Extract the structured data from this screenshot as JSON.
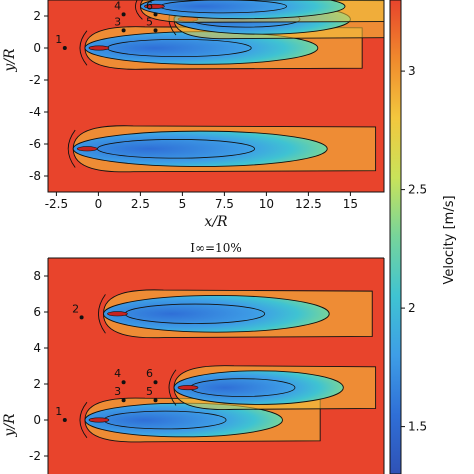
{
  "chart_data": [
    {
      "type": "heatmap",
      "title": "",
      "xlabel": "x/R",
      "ylabel": "y/R",
      "xlim": [
        -3,
        17
      ],
      "ylim": [
        -9,
        3
      ],
      "x_ticks": [
        "-2.5",
        "0",
        "2.5",
        "5",
        "7.5",
        "10",
        "12.5",
        "15"
      ],
      "y_ticks": [
        "2",
        "0",
        "-2",
        "-4",
        "-6",
        "-8"
      ],
      "turbines": [
        {
          "label": "1",
          "x": -2.0,
          "y": 0.0
        },
        {
          "label": "3",
          "x": 1.5,
          "y": 1.1
        },
        {
          "label": "4",
          "x": 1.5,
          "y": 2.1
        },
        {
          "label": "5",
          "x": 3.4,
          "y": 1.1
        },
        {
          "label": "6",
          "x": 3.4,
          "y": 2.1
        }
      ],
      "wakes": [
        {
          "x0": -0.8,
          "y": 0.0,
          "length": 16.5,
          "width": 1.2
        },
        {
          "x0": 4.5,
          "y": 1.8,
          "length": 12.5,
          "width": 1.1
        },
        {
          "x0": 2.5,
          "y": 2.6,
          "length": 14.5,
          "width": 0.9
        },
        {
          "x0": -1.5,
          "y": -6.3,
          "length": 18.0,
          "width": 1.3
        }
      ]
    },
    {
      "type": "heatmap",
      "title": "I∞=10%",
      "xlabel": "x/R",
      "ylabel": "y/R",
      "xlim": [
        -3,
        17
      ],
      "ylim": [
        -3,
        9
      ],
      "y_ticks": [
        "8",
        "6",
        "4",
        "2",
        "0",
        "-2"
      ],
      "turbines": [
        {
          "label": "1",
          "x": -2.0,
          "y": 0.0
        },
        {
          "label": "2",
          "x": -1.0,
          "y": 5.7
        },
        {
          "label": "3",
          "x": 1.5,
          "y": 1.1
        },
        {
          "label": "4",
          "x": 1.5,
          "y": 2.1
        },
        {
          "label": "5",
          "x": 3.4,
          "y": 1.1
        },
        {
          "label": "6",
          "x": 3.4,
          "y": 2.1
        }
      ],
      "wakes": [
        {
          "x0": -0.8,
          "y": 0.0,
          "length": 14.0,
          "width": 1.1
        },
        {
          "x0": 0.3,
          "y": 5.9,
          "length": 16.0,
          "width": 1.2
        },
        {
          "x0": 4.5,
          "y": 1.8,
          "length": 12.0,
          "width": 1.1
        }
      ]
    }
  ],
  "colorbar": {
    "label": "Velocity [m/s]",
    "ticks": [
      "3",
      "2.5",
      "2",
      "1.5"
    ],
    "range": [
      1.3,
      3.3
    ],
    "colors": [
      "#e8442c",
      "#f08a2d",
      "#f3c83e",
      "#c9e35a",
      "#76d49b",
      "#3fc3d2",
      "#3e9ee6",
      "#2f6fd7",
      "#2f52b6"
    ]
  },
  "colors": {
    "background_flow": "#e8442c",
    "far_field": "#f06a36",
    "wake_core": "#2f6fd7",
    "wake_edge": "#43d0c0",
    "peak": "#c72320"
  }
}
